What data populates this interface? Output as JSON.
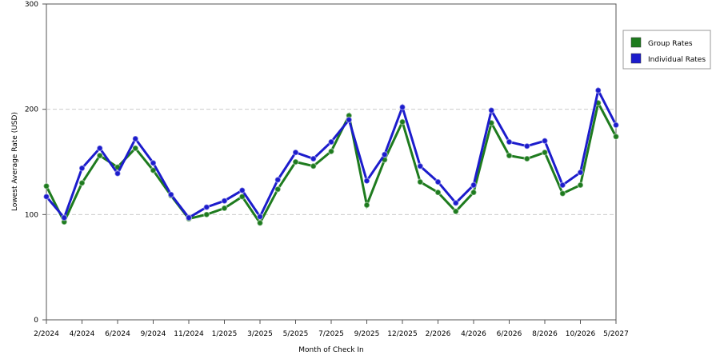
{
  "chart_data": {
    "type": "line",
    "x_label": "Month of Check In",
    "y_label": "Lowest Average Rate (USD)",
    "categories": [
      "2/2024",
      null,
      "4/2024",
      null,
      "6/2024",
      null,
      "9/2024",
      null,
      "11/2024",
      null,
      "1/2025",
      null,
      "3/2025",
      null,
      "5/2025",
      null,
      "7/2025",
      null,
      "9/2025",
      null,
      "12/2025",
      null,
      "2/2026",
      null,
      "4/2026",
      null,
      "6/2026",
      null,
      "8/2026",
      null,
      "10/2026",
      null,
      "5/2027"
    ],
    "series": [
      {
        "name": "Group Rates",
        "color": "#1e7b1e",
        "values": [
          127,
          93,
          130,
          156,
          145,
          163,
          142,
          118,
          96,
          100,
          106,
          117,
          92,
          124,
          150,
          146,
          160,
          194,
          109,
          152,
          188,
          131,
          121,
          103,
          121,
          187,
          156,
          153,
          159,
          120,
          128,
          206,
          174
        ]
      },
      {
        "name": "Individual Rates",
        "color": "#1c1ccc",
        "values": [
          117,
          97,
          144,
          163,
          139,
          172,
          149,
          119,
          97,
          107,
          113,
          123,
          98,
          133,
          159,
          153,
          169,
          190,
          132,
          157,
          202,
          146,
          131,
          111,
          128,
          199,
          169,
          165,
          170,
          128,
          140,
          218,
          185
        ]
      }
    ],
    "ylim": [
      0,
      300
    ],
    "yticks": [
      0,
      100,
      200,
      300
    ],
    "grid": true,
    "legend": "right"
  }
}
